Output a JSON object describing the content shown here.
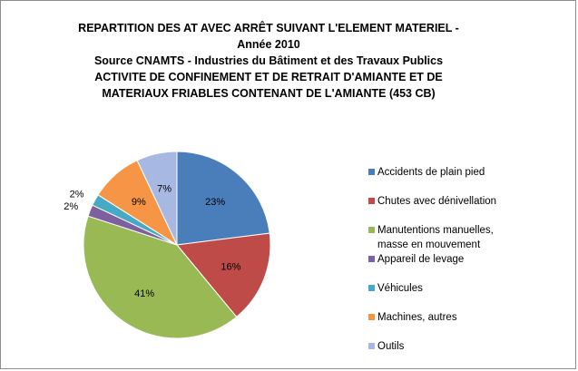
{
  "chart_data": {
    "type": "pie",
    "title_lines": [
      "REPARTITION DES AT AVEC ARRÊT SUIVANT L'ELEMENT MATERIEL  -",
      "Année 2010",
      "Source CNAMTS - Industries du Bâtiment et des Travaux Publics",
      "ACTIVITE DE CONFINEMENT ET DE RETRAIT D'AMIANTE ET DE",
      "MATERIAUX FRIABLES CONTENANT DE L'AMIANTE (453 CB)"
    ],
    "slices": [
      {
        "label_lines": [
          "Accidents de plain pied"
        ],
        "value": 23,
        "display": "23%",
        "color": "#4a7ebb"
      },
      {
        "label_lines": [
          "Chutes avec dénivellation"
        ],
        "value": 16,
        "display": "16%",
        "color": "#be4b48"
      },
      {
        "label_lines": [
          "Manutentions manuelles,",
          "masse en mouvement"
        ],
        "value": 41,
        "display": "41%",
        "color": "#98b954"
      },
      {
        "label_lines": [
          "Appareil de levage"
        ],
        "value": 2,
        "display": "2%",
        "color": "#7d60a0"
      },
      {
        "label_lines": [
          "Véhicules"
        ],
        "value": 2,
        "display": "2%",
        "color": "#46aac5"
      },
      {
        "label_lines": [
          "Machines, autres"
        ],
        "value": 9,
        "display": "9%",
        "color": "#f69546"
      },
      {
        "label_lines": [
          "Outils"
        ],
        "value": 7,
        "display": "7%",
        "color": "#a7b9e3"
      }
    ],
    "legend_position": "right"
  }
}
